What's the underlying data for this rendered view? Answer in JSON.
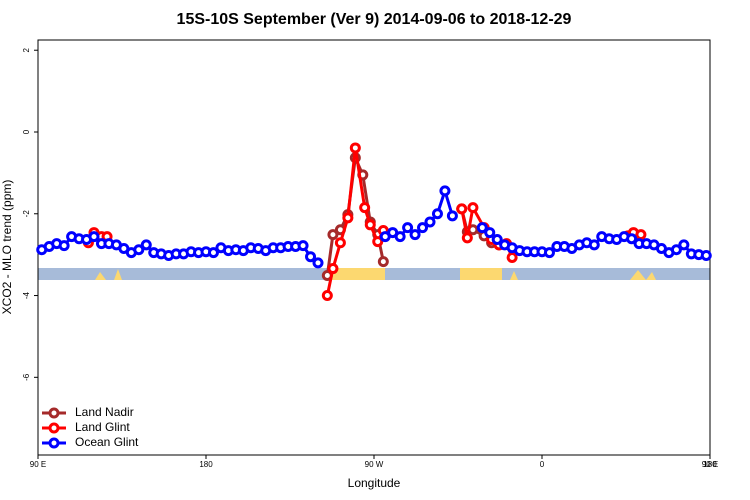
{
  "chart_data": {
    "type": "line",
    "title": "15S-10S September (Ver 9)   2014-09-06 to 2018-12-29",
    "x_label": "Longitude",
    "y_label": "XCO2 - MLO trend (ppm)",
    "xlim": [
      90,
      450
    ],
    "ylim": [
      -7.9,
      2.25
    ],
    "xticks": [
      {
        "value": 90,
        "label": "90 E"
      },
      {
        "value": 180,
        "label": "180"
      },
      {
        "value": 270,
        "label": "90 W"
      },
      {
        "value": 360,
        "label": "0"
      },
      {
        "value": 450,
        "label": "90 E"
      },
      {
        "value": 540,
        "label": "180"
      }
    ],
    "yticks": [
      -6,
      -4,
      -2,
      0,
      2
    ],
    "legend": "bottomleft",
    "series": [
      {
        "name": "Land Nadir",
        "color": "#a52a2a",
        "x": [
          245,
          248,
          252,
          256,
          260,
          264,
          268,
          272,
          275,
          null,
          317,
          320,
          323,
          329,
          333,
          337
        ],
        "values": [
          -3.51,
          -2.51,
          -2.39,
          -2.02,
          -0.63,
          -1.05,
          -2.2,
          -2.51,
          -3.17,
          null,
          -1.88,
          -2.44,
          -2.39,
          -2.54,
          -2.71,
          -2.76
        ]
      },
      {
        "name": "Land Glint",
        "color": "#ff0000",
        "x": [
          117,
          120,
          124,
          127,
          null,
          245,
          248,
          252,
          256,
          260,
          265,
          268,
          272,
          275,
          null,
          317,
          320,
          323,
          329,
          333,
          337,
          341,
          344,
          null,
          406,
          409,
          413
        ],
        "values": [
          -2.71,
          -2.46,
          -2.56,
          -2.56,
          null,
          -4.0,
          -3.34,
          -2.71,
          -2.1,
          -0.39,
          -1.85,
          -2.27,
          -2.68,
          -2.41,
          null,
          -1.88,
          -2.59,
          -1.85,
          -2.34,
          -2.63,
          -2.76,
          -2.73,
          -3.07,
          null,
          -2.54,
          -2.46,
          -2.51
        ]
      },
      {
        "name": "Ocean Glint",
        "color": "#0000ff",
        "x": [
          92,
          96,
          100,
          104,
          108,
          112,
          116,
          120,
          124,
          128,
          132,
          136,
          140,
          144,
          148,
          152,
          156,
          160,
          164,
          168,
          172,
          176,
          180,
          184,
          188,
          192,
          196,
          200,
          204,
          208,
          212,
          216,
          220,
          224,
          228,
          232,
          236,
          240,
          null,
          276,
          280,
          284,
          288,
          292,
          296,
          300,
          304,
          308,
          312,
          null,
          328,
          332,
          336,
          340,
          344,
          348,
          352,
          356,
          360,
          364,
          368,
          372,
          376,
          380,
          384,
          388,
          392,
          396,
          400,
          404,
          408,
          412,
          416,
          420,
          424,
          428,
          432,
          436,
          440,
          444,
          448
        ],
        "values": [
          -2.88,
          -2.8,
          -2.73,
          -2.78,
          -2.56,
          -2.61,
          -2.63,
          -2.56,
          -2.73,
          -2.73,
          -2.76,
          -2.85,
          -2.95,
          -2.88,
          -2.76,
          -2.95,
          -2.98,
          -3.02,
          -2.98,
          -2.98,
          -2.93,
          -2.95,
          -2.93,
          -2.95,
          -2.83,
          -2.9,
          -2.88,
          -2.9,
          -2.83,
          -2.85,
          -2.9,
          -2.83,
          -2.83,
          -2.8,
          -2.8,
          -2.78,
          -3.05,
          -3.2,
          null,
          -2.56,
          -2.46,
          -2.56,
          -2.34,
          -2.51,
          -2.34,
          -2.2,
          -2.0,
          -1.44,
          -2.05,
          null,
          -2.34,
          -2.46,
          -2.63,
          -2.76,
          -2.83,
          -2.9,
          -2.93,
          -2.93,
          -2.93,
          -2.95,
          -2.8,
          -2.8,
          -2.85,
          -2.76,
          -2.71,
          -2.76,
          -2.56,
          -2.61,
          -2.63,
          -2.56,
          -2.61,
          -2.73,
          -2.73,
          -2.76,
          -2.85,
          -2.95,
          -2.88,
          -2.76,
          -2.98,
          -3.0,
          -3.02
        ]
      }
    ]
  }
}
